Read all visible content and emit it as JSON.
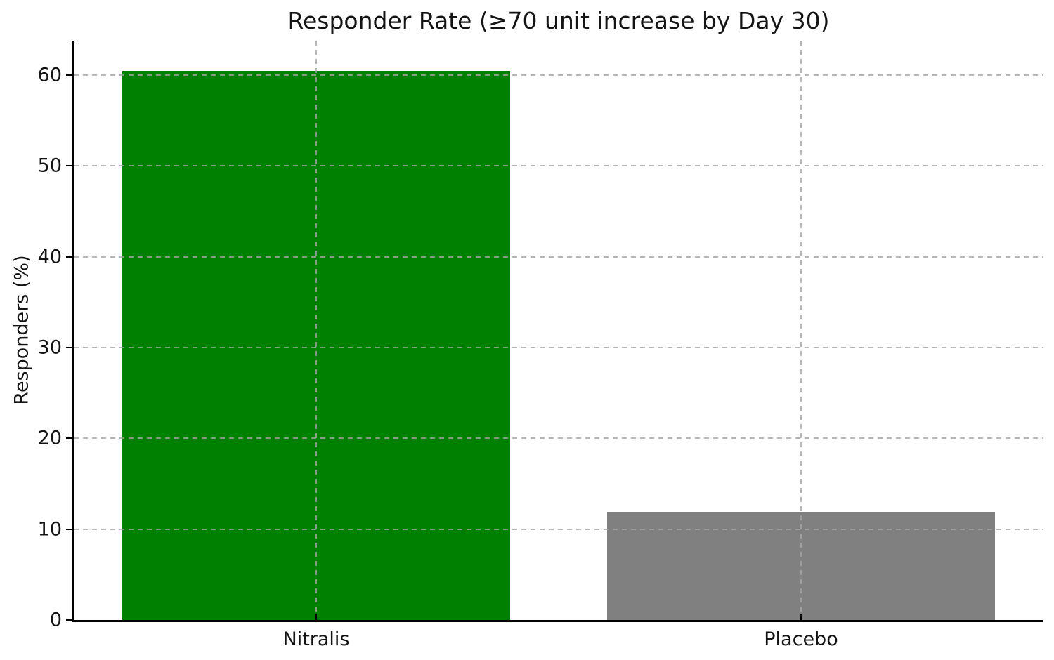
{
  "chart_data": {
    "type": "bar",
    "title": "Responder Rate (≥70 unit increase by Day 30)",
    "ylabel": "Responders (%)",
    "xlabel": "",
    "categories": [
      "Nitralis",
      "Placebo"
    ],
    "values": [
      60.5,
      11.9
    ],
    "bar_colors": [
      "#008000",
      "#808080"
    ],
    "ylim": [
      0,
      63.8
    ],
    "yticks": [
      0,
      10,
      20,
      30,
      40,
      50,
      60
    ],
    "bar_width_fraction": 0.8,
    "grid": {
      "horizontal": true,
      "vertical": true,
      "style": "dashed",
      "drawn_above_bars": true
    },
    "legend": "none"
  },
  "style": {
    "background": "#ffffff",
    "text_color": "#141414",
    "spine_color": "#000000",
    "grid_color": "#c7c7c7"
  }
}
